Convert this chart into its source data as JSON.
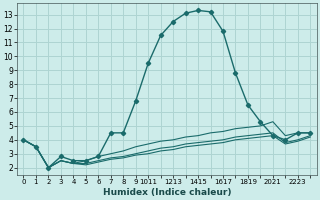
{
  "xlabel": "Humidex (Indice chaleur)",
  "background_color": "#cdecea",
  "grid_color": "#aed4d2",
  "line_color": "#1a6b6b",
  "xlim": [
    -0.5,
    23.5
  ],
  "ylim": [
    1.5,
    13.8
  ],
  "yticks": [
    2,
    3,
    4,
    5,
    6,
    7,
    8,
    9,
    10,
    11,
    12,
    13
  ],
  "series_main": {
    "x": [
      0,
      1,
      2,
      3,
      4,
      5,
      6,
      7,
      8,
      9,
      10,
      11,
      12,
      13,
      14,
      15,
      16,
      17,
      18,
      19,
      20,
      21,
      22,
      23
    ],
    "y": [
      4.0,
      3.5,
      2.0,
      2.8,
      2.5,
      2.5,
      2.8,
      4.5,
      4.5,
      6.8,
      9.5,
      11.5,
      12.5,
      13.1,
      13.3,
      13.2,
      11.8,
      8.8,
      6.5,
      5.3,
      4.3,
      4.0,
      4.5,
      4.5
    ]
  },
  "series_flat": [
    {
      "x": [
        0,
        1,
        2,
        3,
        4,
        5,
        6,
        7,
        8,
        9,
        10,
        11,
        12,
        13,
        14,
        15,
        16,
        17,
        18,
        19,
        20,
        21,
        22,
        23
      ],
      "y": [
        4.0,
        3.5,
        2.0,
        2.5,
        2.3,
        2.5,
        2.8,
        3.0,
        3.2,
        3.5,
        3.7,
        3.9,
        4.0,
        4.2,
        4.3,
        4.5,
        4.6,
        4.8,
        4.9,
        5.0,
        5.3,
        4.3,
        4.5,
        4.5
      ]
    },
    {
      "x": [
        0,
        1,
        2,
        3,
        4,
        5,
        6,
        7,
        8,
        9,
        10,
        11,
        12,
        13,
        14,
        15,
        16,
        17,
        18,
        19,
        20,
        21,
        22,
        23
      ],
      "y": [
        4.0,
        3.5,
        2.0,
        2.5,
        2.3,
        2.3,
        2.5,
        2.7,
        2.8,
        3.0,
        3.2,
        3.4,
        3.5,
        3.7,
        3.8,
        3.9,
        4.0,
        4.2,
        4.3,
        4.4,
        4.5,
        3.8,
        4.0,
        4.3
      ]
    },
    {
      "x": [
        0,
        1,
        2,
        3,
        4,
        5,
        6,
        7,
        8,
        9,
        10,
        11,
        12,
        13,
        14,
        15,
        16,
        17,
        18,
        19,
        20,
        21,
        22,
        23
      ],
      "y": [
        4.0,
        3.5,
        2.0,
        2.5,
        2.3,
        2.2,
        2.4,
        2.6,
        2.7,
        2.9,
        3.0,
        3.2,
        3.3,
        3.5,
        3.6,
        3.7,
        3.8,
        4.0,
        4.1,
        4.2,
        4.3,
        3.7,
        3.9,
        4.2
      ]
    }
  ]
}
